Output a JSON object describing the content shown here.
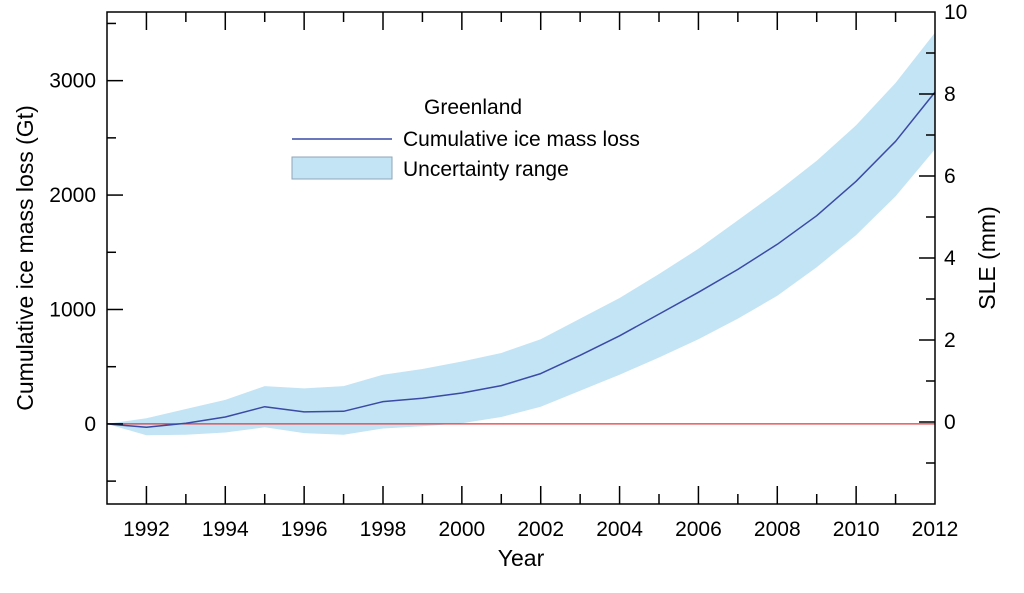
{
  "chart_data": {
    "type": "line",
    "xlabel": "Year",
    "ylabel": "Cumulative ice mass loss (Gt)",
    "y2label": "SLE (mm)",
    "xlim": [
      1991,
      2012
    ],
    "ylim": [
      -700,
      3600
    ],
    "y2lim": [
      -2,
      10
    ],
    "x_ticks": [
      1992,
      1994,
      1996,
      1998,
      2000,
      2002,
      2004,
      2006,
      2008,
      2010,
      2012
    ],
    "y_ticks": [
      0,
      1000,
      2000,
      3000
    ],
    "y2_ticks": [
      0,
      2,
      4,
      6,
      8,
      10
    ],
    "grid": false,
    "legend": {
      "title": "Greenland",
      "position": "top-center",
      "entries": [
        "Cumulative ice mass loss",
        "Uncertainty range"
      ]
    },
    "x": [
      1991,
      1992,
      1993,
      1994,
      1995,
      1996,
      1997,
      1998,
      1999,
      2000,
      2001,
      2002,
      2003,
      2004,
      2005,
      2006,
      2007,
      2008,
      2009,
      2010,
      2011,
      2012
    ],
    "series": [
      {
        "name": "Cumulative ice mass loss",
        "values": [
          0,
          -30,
          5,
          60,
          150,
          105,
          110,
          195,
          225,
          270,
          335,
          440,
          600,
          770,
          960,
          1150,
          1350,
          1570,
          1820,
          2120,
          2470,
          2900
        ]
      },
      {
        "name": "Uncertainty range",
        "lower": [
          0,
          -100,
          -95,
          -75,
          -30,
          -80,
          -95,
          -40,
          -20,
          5,
          60,
          150,
          290,
          430,
          580,
          740,
          920,
          1120,
          1370,
          1650,
          1990,
          2400
        ],
        "upper": [
          0,
          50,
          130,
          210,
          330,
          310,
          330,
          430,
          480,
          545,
          620,
          740,
          920,
          1100,
          1310,
          1530,
          1780,
          2030,
          2300,
          2610,
          2980,
          3420
        ]
      },
      {
        "values": [
          0,
          0,
          0,
          0,
          0,
          0,
          0,
          0,
          0,
          0,
          0,
          0,
          0,
          0,
          0,
          0,
          0,
          0,
          0,
          0,
          0,
          0
        ]
      }
    ],
    "colors": {
      "line": "#3a4aa6",
      "band": "#c3e4f4",
      "zero_line": "#e0393e",
      "axis": "#000000"
    }
  }
}
